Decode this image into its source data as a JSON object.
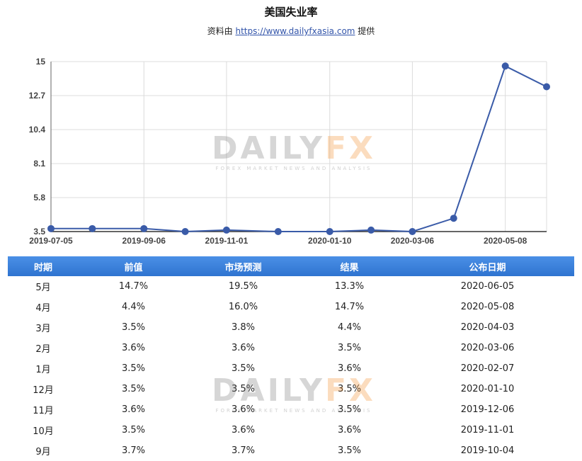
{
  "header": {
    "title": "美国失业率",
    "source_prefix": "资料由 ",
    "source_link": "https://www.dailyfxasia.com",
    "source_suffix": " 提供"
  },
  "watermark": {
    "logo_left": "DAILY",
    "logo_right": "FX",
    "tagline": "FOREX MARKET NEWS AND ANALYSIS"
  },
  "colors": {
    "line": "#3a5ba8",
    "table_header": "#3a80da",
    "grid": "#dcdcdc"
  },
  "chart_data": {
    "type": "line",
    "title": "美国失业率",
    "x": [
      "2019-07-05",
      "2019-08-02",
      "2019-09-06",
      "2019-10-04",
      "2019-11-01",
      "2019-12-06",
      "2020-01-10",
      "2020-02-07",
      "2020-03-06",
      "2020-04-03",
      "2020-05-08",
      "2020-06-05"
    ],
    "values": [
      3.7,
      3.7,
      3.7,
      3.5,
      3.6,
      3.5,
      3.5,
      3.6,
      3.5,
      4.4,
      14.7,
      13.3
    ],
    "x_tick_labels": [
      "2019-07-05",
      "2019-09-06",
      "2019-11-01",
      "2020-01-10",
      "2020-03-06",
      "2020-05-08"
    ],
    "y_ticks": [
      "3.5",
      "5.8",
      "8.1",
      "10.4",
      "12.7",
      "15"
    ],
    "ylim": [
      3.5,
      15
    ],
    "grid": true
  },
  "table": {
    "headers": [
      "时期",
      "前值",
      "市场预测",
      "结果",
      "公布日期"
    ],
    "rows": [
      [
        "5月",
        "14.7%",
        "19.5%",
        "13.3%",
        "2020-06-05"
      ],
      [
        "4月",
        "4.4%",
        "16.0%",
        "14.7%",
        "2020-05-08"
      ],
      [
        "3月",
        "3.5%",
        "3.8%",
        "4.4%",
        "2020-04-03"
      ],
      [
        "2月",
        "3.6%",
        "3.6%",
        "3.5%",
        "2020-03-06"
      ],
      [
        "1月",
        "3.5%",
        "3.5%",
        "3.6%",
        "2020-02-07"
      ],
      [
        "12月",
        "3.5%",
        "3.5%",
        "3.5%",
        "2020-01-10"
      ],
      [
        "11月",
        "3.6%",
        "3.6%",
        "3.5%",
        "2019-12-06"
      ],
      [
        "10月",
        "3.5%",
        "3.6%",
        "3.6%",
        "2019-11-01"
      ],
      [
        "9月",
        "3.7%",
        "3.7%",
        "3.5%",
        "2019-10-04"
      ]
    ]
  }
}
